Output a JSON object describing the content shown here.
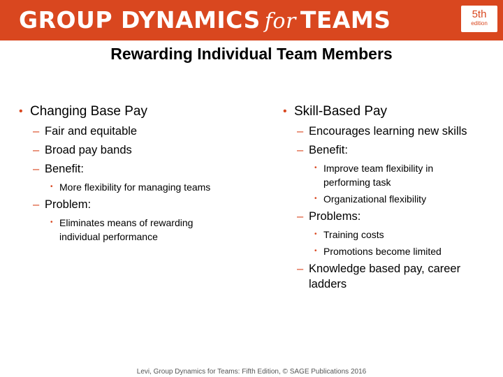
{
  "header": {
    "title_part1": "GROUP DYNAMICS",
    "title_for": "for",
    "title_part2": "TEAMS",
    "edition_num": "5th",
    "edition_word": "edition",
    "brand_color": "#d9471f"
  },
  "slide_title": "Rewarding Individual Team Members",
  "left_column": {
    "heading": "Changing Base Pay",
    "items": [
      "Fair and equitable",
      "Broad pay bands",
      "Benefit:",
      "More flexibility for managing teams",
      "Problem:",
      "Eliminates means of rewarding individual performance"
    ]
  },
  "right_column": {
    "heading": "Skill-Based Pay",
    "items": [
      "Encourages learning new skills",
      "Benefit:",
      "Improve team flexibility in performing task",
      "Organizational flexibility",
      "Problems:",
      "Training costs",
      "Promotions become limited",
      "Knowledge based pay, career ladders"
    ]
  },
  "footer": "Levi, Group Dynamics for Teams: Fifth Edition, © SAGE Publications 2016"
}
